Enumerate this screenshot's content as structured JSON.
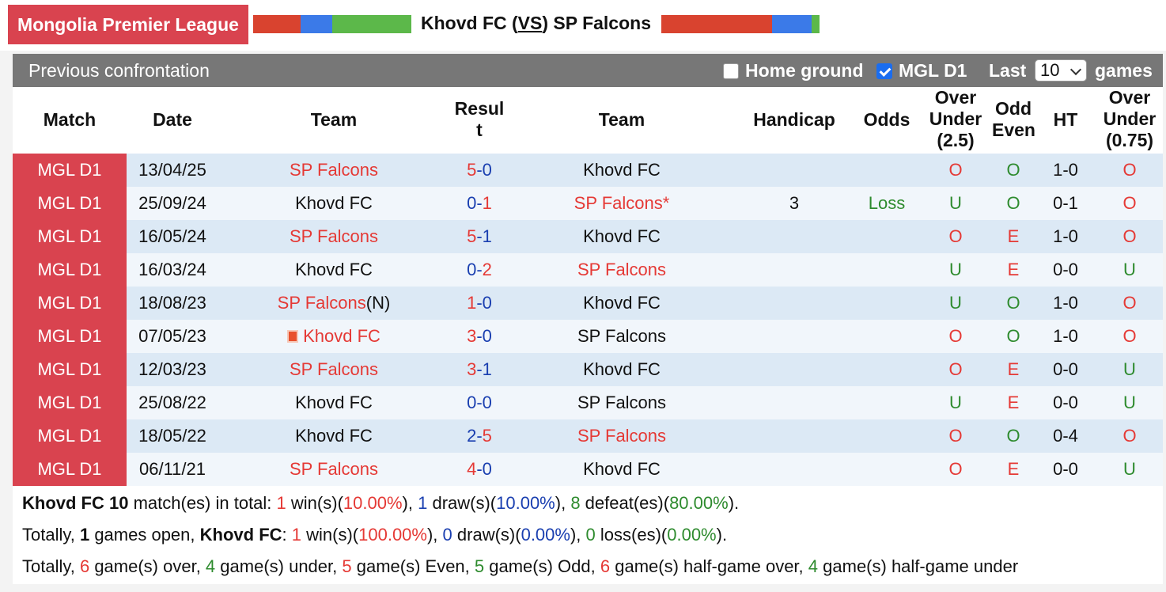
{
  "header": {
    "league": "Mongolia Premier League",
    "home_team": "Khovd FC",
    "vs_open": "(",
    "vs": "VS",
    "vs_close": ")",
    "away_team": "SP Falcons",
    "colors": {
      "red": "#d9432f",
      "blue": "#3b7ae8",
      "green": "#5cb84a"
    }
  },
  "panel": {
    "title": "Previous confrontation",
    "home_ground_label": "Home ground",
    "home_ground_checked": false,
    "league_filter_label": "MGL D1",
    "league_filter_checked": true,
    "last_label": "Last",
    "last_value": "10",
    "games_label": "games"
  },
  "columns": {
    "match": "Match",
    "date": "Date",
    "team1": "Team",
    "result_l1": "Resul",
    "result_l2": "t",
    "team2": "Team",
    "handicap": "Handicap",
    "odds": "Odds",
    "ou_l1": "Over",
    "ou_l2": "Under",
    "ou_l3": "(2.5)",
    "oe_l1": "Odd",
    "oe_l2": "Even",
    "ht": "HT",
    "ou2_l1": "Over",
    "ou2_l2": "Under",
    "ou2_l3": "(0.75)"
  },
  "rows": [
    {
      "match": "MGL D1",
      "date": "13/04/25",
      "team1": "SP Falcons",
      "team1_suffix": "",
      "team1_flag": false,
      "team1_color": "red",
      "home_goals": "5",
      "away_goals": "0",
      "home_goal_color": "red",
      "away_goal_color": "blue",
      "team2": "Khovd FC",
      "team2_color": "black",
      "handicap": "",
      "odds": "",
      "ou": "O",
      "oe": "O",
      "ht": "1-0",
      "ou2": "O"
    },
    {
      "match": "MGL D1",
      "date": "25/09/24",
      "team1": "Khovd FC",
      "team1_suffix": "",
      "team1_flag": false,
      "team1_color": "black",
      "home_goals": "0",
      "away_goals": "1",
      "home_goal_color": "blue",
      "away_goal_color": "red",
      "team2": "SP Falcons*",
      "team2_color": "red",
      "handicap": "3",
      "odds": "Loss",
      "ou": "U",
      "oe": "O",
      "ht": "0-1",
      "ou2": "O"
    },
    {
      "match": "MGL D1",
      "date": "16/05/24",
      "team1": "SP Falcons",
      "team1_suffix": "",
      "team1_flag": false,
      "team1_color": "red",
      "home_goals": "5",
      "away_goals": "1",
      "home_goal_color": "red",
      "away_goal_color": "blue",
      "team2": "Khovd FC",
      "team2_color": "black",
      "handicap": "",
      "odds": "",
      "ou": "O",
      "oe": "E",
      "ht": "1-0",
      "ou2": "O"
    },
    {
      "match": "MGL D1",
      "date": "16/03/24",
      "team1": "Khovd FC",
      "team1_suffix": "",
      "team1_flag": false,
      "team1_color": "black",
      "home_goals": "0",
      "away_goals": "2",
      "home_goal_color": "blue",
      "away_goal_color": "red",
      "team2": "SP Falcons",
      "team2_color": "red",
      "handicap": "",
      "odds": "",
      "ou": "U",
      "oe": "E",
      "ht": "0-0",
      "ou2": "U"
    },
    {
      "match": "MGL D1",
      "date": "18/08/23",
      "team1": "SP Falcons",
      "team1_suffix": "(N)",
      "team1_flag": false,
      "team1_color": "red",
      "home_goals": "1",
      "away_goals": "0",
      "home_goal_color": "red",
      "away_goal_color": "blue",
      "team2": "Khovd FC",
      "team2_color": "black",
      "handicap": "",
      "odds": "",
      "ou": "U",
      "oe": "O",
      "ht": "1-0",
      "ou2": "O"
    },
    {
      "match": "MGL D1",
      "date": "07/05/23",
      "team1": "Khovd FC",
      "team1_suffix": "",
      "team1_flag": true,
      "team1_color": "red",
      "home_goals": "3",
      "away_goals": "0",
      "home_goal_color": "red",
      "away_goal_color": "blue",
      "team2": "SP Falcons",
      "team2_color": "black",
      "handicap": "",
      "odds": "",
      "ou": "O",
      "oe": "O",
      "ht": "1-0",
      "ou2": "O"
    },
    {
      "match": "MGL D1",
      "date": "12/03/23",
      "team1": "SP Falcons",
      "team1_suffix": "",
      "team1_flag": false,
      "team1_color": "red",
      "home_goals": "3",
      "away_goals": "1",
      "home_goal_color": "red",
      "away_goal_color": "blue",
      "team2": "Khovd FC",
      "team2_color": "black",
      "handicap": "",
      "odds": "",
      "ou": "O",
      "oe": "E",
      "ht": "0-0",
      "ou2": "U"
    },
    {
      "match": "MGL D1",
      "date": "25/08/22",
      "team1": "Khovd FC",
      "team1_suffix": "",
      "team1_flag": false,
      "team1_color": "black",
      "home_goals": "0",
      "away_goals": "0",
      "home_goal_color": "blue",
      "away_goal_color": "blue",
      "team2": "SP Falcons",
      "team2_color": "black",
      "handicap": "",
      "odds": "",
      "ou": "U",
      "oe": "E",
      "ht": "0-0",
      "ou2": "U"
    },
    {
      "match": "MGL D1",
      "date": "18/05/22",
      "team1": "Khovd FC",
      "team1_suffix": "",
      "team1_flag": false,
      "team1_color": "black",
      "home_goals": "2",
      "away_goals": "5",
      "home_goal_color": "blue",
      "away_goal_color": "red",
      "team2": "SP Falcons",
      "team2_color": "red",
      "handicap": "",
      "odds": "",
      "ou": "O",
      "oe": "O",
      "ht": "0-4",
      "ou2": "O"
    },
    {
      "match": "MGL D1",
      "date": "06/11/21",
      "team1": "SP Falcons",
      "team1_suffix": "",
      "team1_flag": false,
      "team1_color": "red",
      "home_goals": "4",
      "away_goals": "0",
      "home_goal_color": "red",
      "away_goal_color": "blue",
      "team2": "Khovd FC",
      "team2_color": "black",
      "handicap": "",
      "odds": "",
      "ou": "O",
      "oe": "E",
      "ht": "0-0",
      "ou2": "U"
    }
  ],
  "summary": {
    "line1": [
      {
        "t": "Khovd FC 10",
        "c": "black",
        "b": true
      },
      {
        "t": " match(es) in total: ",
        "c": "black",
        "b": false
      },
      {
        "t": "1",
        "c": "red",
        "b": false
      },
      {
        "t": " win(s)(",
        "c": "black",
        "b": false
      },
      {
        "t": "10.00%",
        "c": "red",
        "b": false
      },
      {
        "t": "), ",
        "c": "black",
        "b": false
      },
      {
        "t": "1",
        "c": "blue",
        "b": false
      },
      {
        "t": " draw(s)(",
        "c": "black",
        "b": false
      },
      {
        "t": "10.00%",
        "c": "blue",
        "b": false
      },
      {
        "t": "), ",
        "c": "black",
        "b": false
      },
      {
        "t": "8",
        "c": "green",
        "b": false
      },
      {
        "t": " defeat(es)(",
        "c": "black",
        "b": false
      },
      {
        "t": "80.00%",
        "c": "green",
        "b": false
      },
      {
        "t": ").",
        "c": "black",
        "b": false
      }
    ],
    "line2": [
      {
        "t": "Totally, ",
        "c": "black",
        "b": false
      },
      {
        "t": "1",
        "c": "black",
        "b": true
      },
      {
        "t": " games open, ",
        "c": "black",
        "b": false
      },
      {
        "t": "Khovd FC",
        "c": "black",
        "b": true
      },
      {
        "t": ": ",
        "c": "black",
        "b": false
      },
      {
        "t": "1",
        "c": "red",
        "b": false
      },
      {
        "t": " win(s)(",
        "c": "black",
        "b": false
      },
      {
        "t": "100.00%",
        "c": "red",
        "b": false
      },
      {
        "t": "), ",
        "c": "black",
        "b": false
      },
      {
        "t": "0",
        "c": "blue",
        "b": false
      },
      {
        "t": " draw(s)(",
        "c": "black",
        "b": false
      },
      {
        "t": "0.00%",
        "c": "blue",
        "b": false
      },
      {
        "t": "), ",
        "c": "black",
        "b": false
      },
      {
        "t": "0",
        "c": "green",
        "b": false
      },
      {
        "t": " loss(es)(",
        "c": "black",
        "b": false
      },
      {
        "t": "0.00%",
        "c": "green",
        "b": false
      },
      {
        "t": ").",
        "c": "black",
        "b": false
      }
    ],
    "line3": [
      {
        "t": "Totally, ",
        "c": "black",
        "b": false
      },
      {
        "t": "6",
        "c": "red",
        "b": false
      },
      {
        "t": " game(s) over, ",
        "c": "black",
        "b": false
      },
      {
        "t": "4",
        "c": "green",
        "b": false
      },
      {
        "t": " game(s) under, ",
        "c": "black",
        "b": false
      },
      {
        "t": "5",
        "c": "red",
        "b": false
      },
      {
        "t": " game(s) Even, ",
        "c": "black",
        "b": false
      },
      {
        "t": "5",
        "c": "green",
        "b": false
      },
      {
        "t": " game(s) Odd, ",
        "c": "black",
        "b": false
      },
      {
        "t": "6",
        "c": "red",
        "b": false
      },
      {
        "t": " game(s) half-game over, ",
        "c": "black",
        "b": false
      },
      {
        "t": "4",
        "c": "green",
        "b": false
      },
      {
        "t": " game(s) half-game under",
        "c": "black",
        "b": false
      }
    ]
  }
}
